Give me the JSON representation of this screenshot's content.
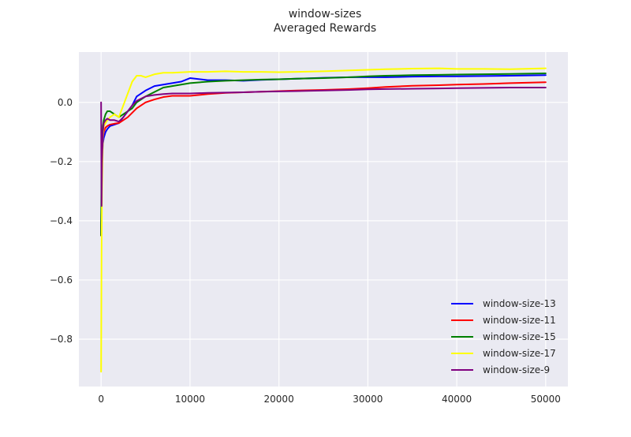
{
  "chart_data": {
    "type": "line",
    "title": "window-sizes",
    "subtitle": "Averaged Rewards",
    "xlabel": "",
    "ylabel": "",
    "xlim": [
      -2500,
      52500
    ],
    "ylim": [
      -0.96,
      0.17
    ],
    "x_ticks": [
      0,
      10000,
      20000,
      30000,
      40000,
      50000
    ],
    "x_tick_labels": [
      "0",
      "10000",
      "20000",
      "30000",
      "40000",
      "50000"
    ],
    "y_ticks": [
      0.0,
      -0.2,
      -0.4,
      -0.6,
      -0.8
    ],
    "y_tick_labels": [
      "0.0",
      "−0.2",
      "−0.4",
      "−0.6",
      "−0.8"
    ],
    "grid": true,
    "style": "seaborn-darkgrid",
    "background_color": "#eaeaf2",
    "grid_color": "#ffffff",
    "legend_position": "lower-right",
    "series": [
      {
        "name": "window-size-13",
        "color": "#0000ff",
        "x": [
          0,
          50,
          100,
          200,
          300,
          500,
          700,
          1000,
          1500,
          2000,
          2500,
          3000,
          3500,
          4000,
          5000,
          6000,
          7000,
          8000,
          9000,
          10000,
          12000,
          14000,
          16000,
          18000,
          20000,
          22000,
          25000,
          28000,
          30000,
          32000,
          35000,
          38000,
          40000,
          43000,
          46000,
          50000
        ],
        "y": [
          -0.45,
          -0.28,
          -0.19,
          -0.14,
          -0.12,
          -0.1,
          -0.09,
          -0.08,
          -0.075,
          -0.07,
          -0.05,
          -0.03,
          -0.01,
          0.02,
          0.04,
          0.055,
          0.06,
          0.065,
          0.07,
          0.082,
          0.075,
          0.075,
          0.073,
          0.076,
          0.078,
          0.08,
          0.083,
          0.085,
          0.085,
          0.085,
          0.087,
          0.088,
          0.088,
          0.089,
          0.09,
          0.092
        ]
      },
      {
        "name": "window-size-11",
        "color": "#ff0000",
        "x": [
          0,
          50,
          100,
          200,
          300,
          500,
          700,
          1000,
          1500,
          2000,
          2500,
          3000,
          3500,
          4000,
          5000,
          6000,
          7000,
          8000,
          9000,
          10000,
          12000,
          14000,
          16000,
          18000,
          20000,
          22000,
          25000,
          28000,
          30000,
          32000,
          35000,
          38000,
          40000,
          43000,
          46000,
          50000
        ],
        "y": [
          -0.45,
          -0.3,
          -0.2,
          -0.12,
          -0.1,
          -0.085,
          -0.08,
          -0.075,
          -0.072,
          -0.07,
          -0.06,
          -0.05,
          -0.035,
          -0.02,
          0.0,
          0.01,
          0.018,
          0.022,
          0.022,
          0.022,
          0.028,
          0.032,
          0.034,
          0.036,
          0.038,
          0.04,
          0.042,
          0.045,
          0.048,
          0.052,
          0.056,
          0.058,
          0.06,
          0.062,
          0.065,
          0.068
        ]
      },
      {
        "name": "window-size-15",
        "color": "#008000",
        "x": [
          0,
          50,
          100,
          200,
          300,
          500,
          700,
          1000,
          1500,
          2000,
          2500,
          3000,
          3500,
          4000,
          5000,
          6000,
          7000,
          8000,
          9000,
          10000,
          12000,
          14000,
          16000,
          18000,
          20000,
          22000,
          25000,
          28000,
          30000,
          32000,
          35000,
          38000,
          40000,
          43000,
          46000,
          50000
        ],
        "y": [
          -0.45,
          -0.2,
          -0.12,
          -0.08,
          -0.06,
          -0.04,
          -0.03,
          -0.03,
          -0.04,
          -0.05,
          -0.04,
          -0.03,
          -0.02,
          0.0,
          0.02,
          0.035,
          0.05,
          0.055,
          0.06,
          0.065,
          0.07,
          0.073,
          0.075,
          0.077,
          0.078,
          0.08,
          0.082,
          0.085,
          0.088,
          0.09,
          0.092,
          0.093,
          0.094,
          0.095,
          0.096,
          0.098
        ]
      },
      {
        "name": "window-size-17",
        "color": "#ffff00",
        "x": [
          0,
          50,
          100,
          200,
          300,
          500,
          700,
          1000,
          1500,
          2000,
          2500,
          3000,
          3500,
          4000,
          4500,
          5000,
          6000,
          7000,
          8000,
          10000,
          12000,
          14000,
          16000,
          18000,
          20000,
          22000,
          25000,
          28000,
          30000,
          32000,
          35000,
          38000,
          40000,
          43000,
          46000,
          50000
        ],
        "y": [
          -0.91,
          -0.5,
          -0.3,
          -0.12,
          -0.08,
          -0.07,
          -0.06,
          -0.05,
          -0.04,
          -0.05,
          -0.01,
          0.03,
          0.07,
          0.09,
          0.09,
          0.085,
          0.095,
          0.1,
          0.1,
          0.103,
          0.103,
          0.105,
          0.103,
          0.103,
          0.102,
          0.103,
          0.105,
          0.108,
          0.11,
          0.112,
          0.114,
          0.115,
          0.113,
          0.113,
          0.112,
          0.115
        ]
      },
      {
        "name": "window-size-9",
        "color": "#800080",
        "x": [
          0,
          50,
          100,
          200,
          300,
          500,
          700,
          1000,
          1500,
          2000,
          2500,
          3000,
          3500,
          4000,
          5000,
          6000,
          7000,
          8000,
          9000,
          10000,
          12000,
          14000,
          16000,
          18000,
          20000,
          22000,
          25000,
          28000,
          30000,
          32000,
          35000,
          38000,
          40000,
          43000,
          46000,
          50000
        ],
        "y": [
          0.0,
          -0.35,
          -0.2,
          -0.1,
          -0.07,
          -0.06,
          -0.055,
          -0.06,
          -0.06,
          -0.065,
          -0.05,
          -0.03,
          -0.01,
          0.005,
          0.02,
          0.025,
          0.028,
          0.03,
          0.03,
          0.03,
          0.032,
          0.033,
          0.034,
          0.036,
          0.037,
          0.038,
          0.04,
          0.042,
          0.044,
          0.045,
          0.046,
          0.047,
          0.048,
          0.049,
          0.05,
          0.05
        ]
      }
    ]
  }
}
